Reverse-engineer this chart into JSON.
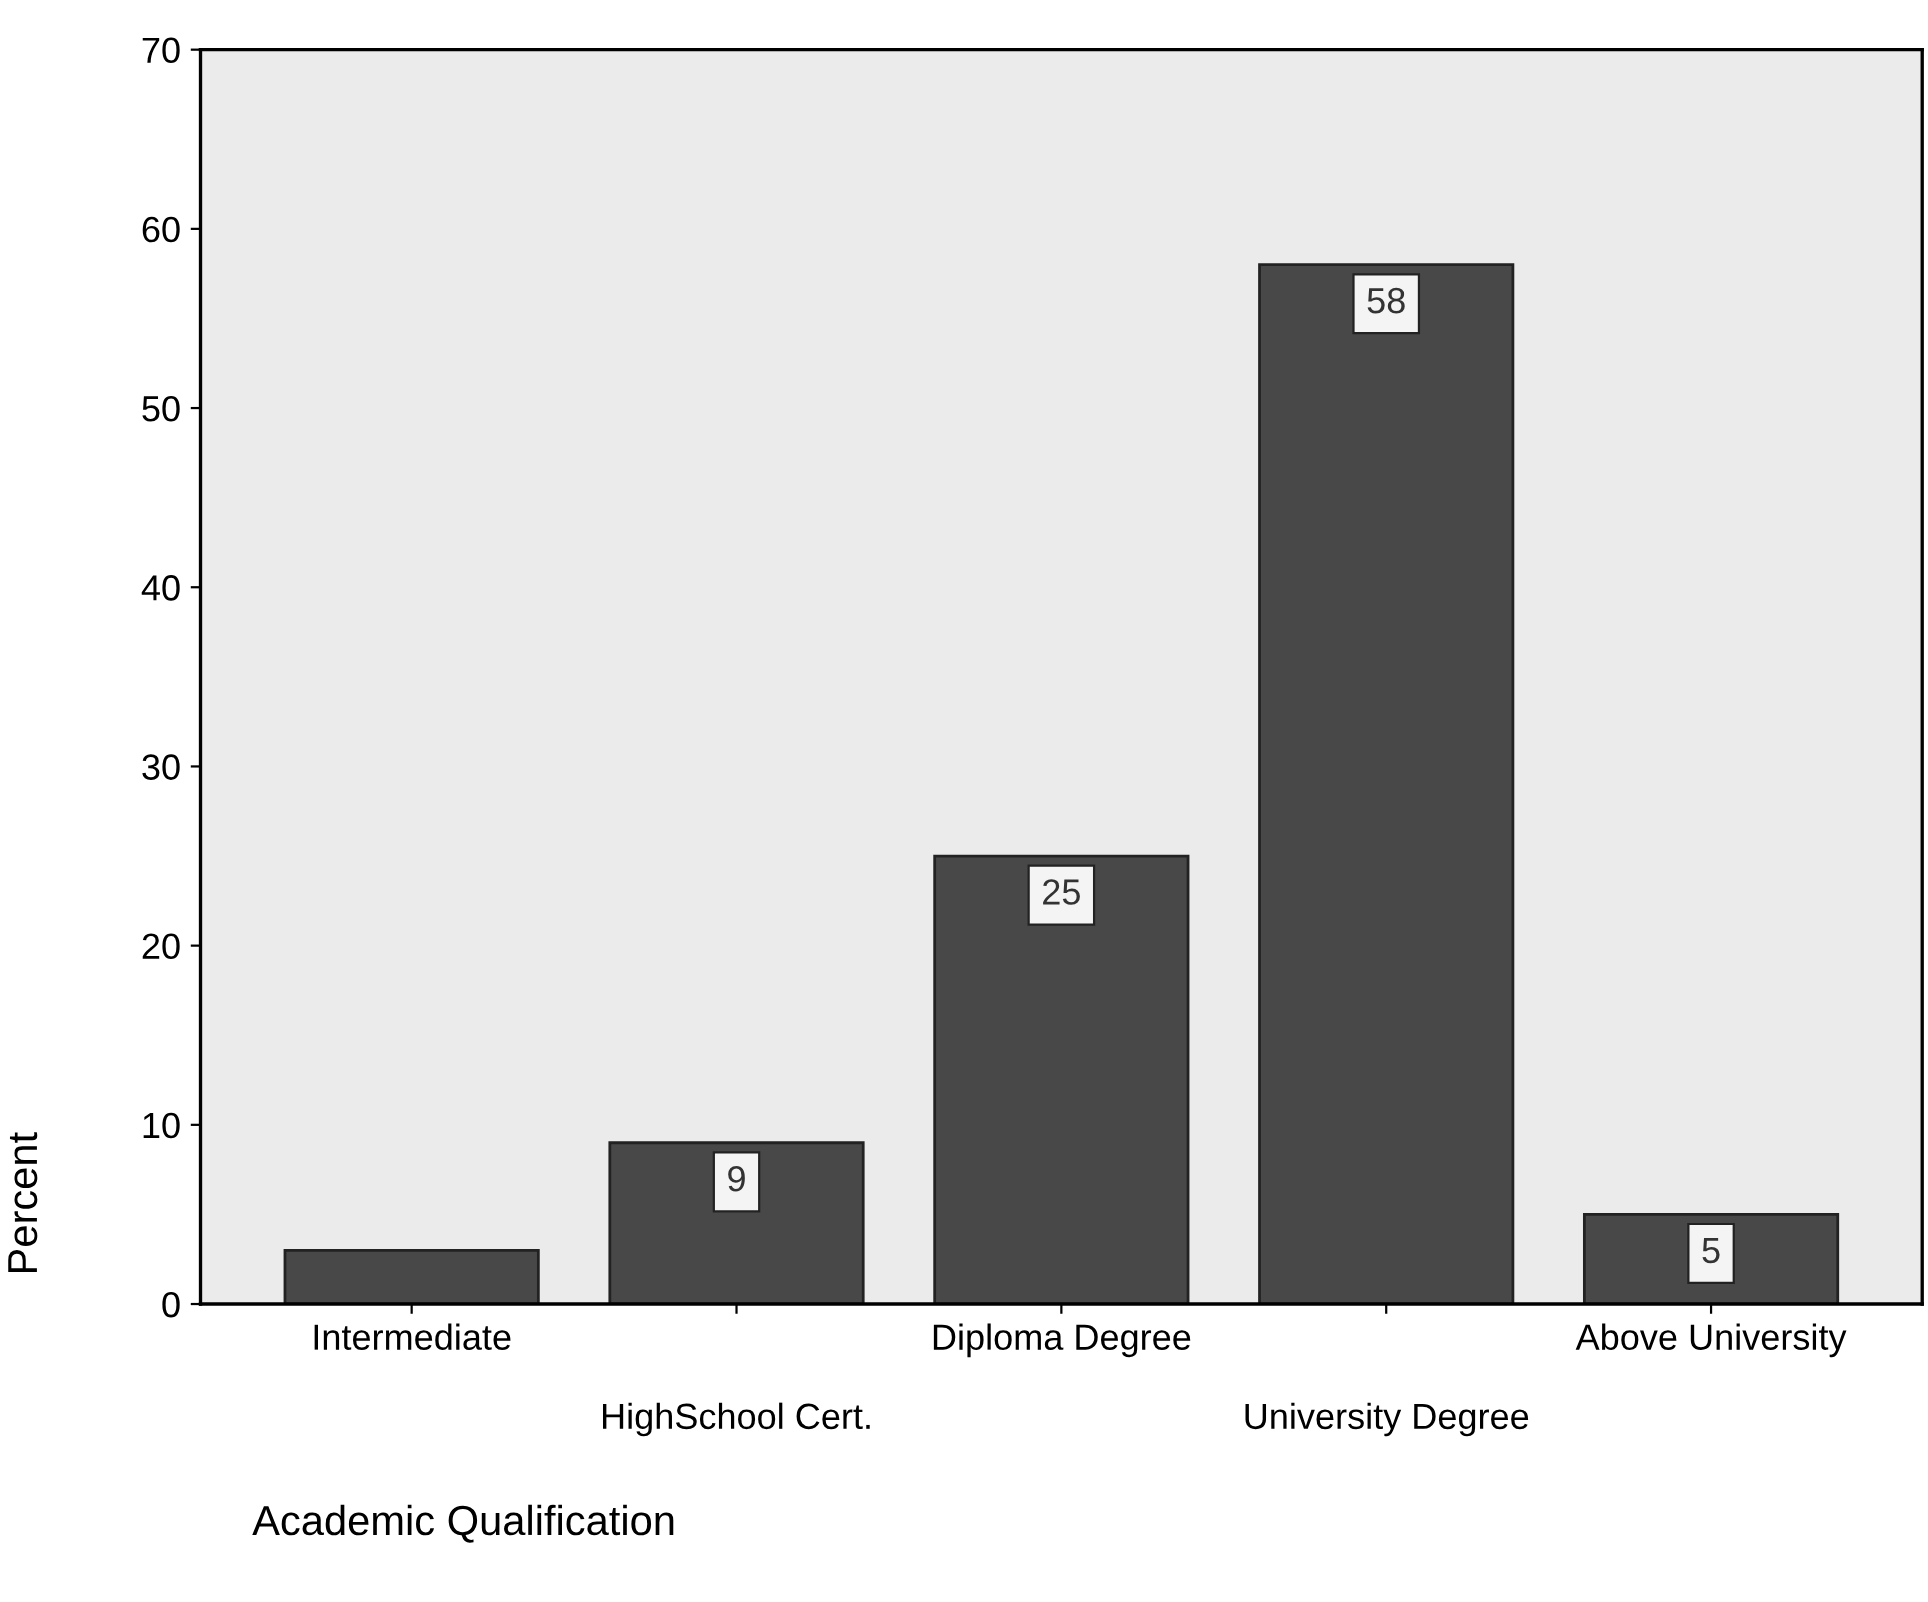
{
  "chart_data": {
    "type": "bar",
    "xlabel": "Academic Qualification",
    "ylabel": "Percent",
    "categories": [
      "Intermediate",
      "HighSchool Cert.",
      "Diploma Degree",
      "University Degree",
      "Above University"
    ],
    "values": [
      3,
      9,
      25,
      58,
      5
    ],
    "value_labels": [
      null,
      "9",
      "25",
      "58",
      "5"
    ],
    "color": "#484848",
    "ylim": [
      0,
      70
    ],
    "yticks": [
      0,
      10,
      20,
      30,
      40,
      50,
      60,
      70
    ],
    "grid": false,
    "legend": false
  }
}
